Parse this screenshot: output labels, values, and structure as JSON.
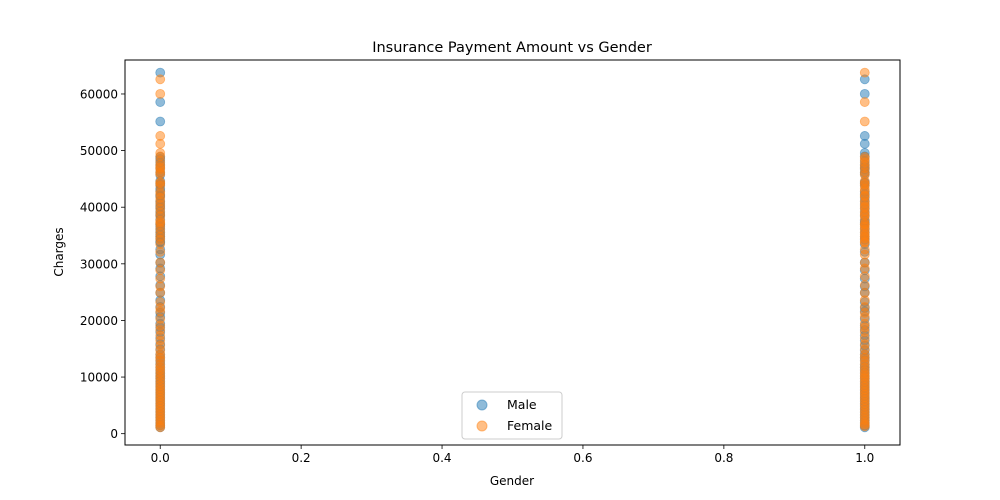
{
  "chart_data": {
    "type": "scatter",
    "title": "Insurance Payment Amount vs Gender",
    "xlabel": "Gender",
    "ylabel": "Charges",
    "xlim": [
      -0.05,
      1.05
    ],
    "ylim": [
      -2000,
      66000
    ],
    "xticks": [
      0.0,
      0.2,
      0.4,
      0.6,
      0.8,
      1.0
    ],
    "xtick_labels": [
      "0.0",
      "0.2",
      "0.4",
      "0.6",
      "0.8",
      "1.0"
    ],
    "yticks": [
      0,
      10000,
      20000,
      30000,
      40000,
      50000,
      60000
    ],
    "ytick_labels": [
      "0",
      "10000",
      "20000",
      "30000",
      "40000",
      "50000",
      "60000"
    ],
    "grid": false,
    "legend_position": "bottom-center",
    "series": [
      {
        "name": "Male",
        "color": "#1f77b4",
        "points": [
          [
            0,
            63770
          ],
          [
            0,
            58571
          ],
          [
            0,
            55135
          ],
          [
            0,
            48885
          ],
          [
            0,
            48517
          ],
          [
            0,
            47928
          ],
          [
            0,
            47403
          ],
          [
            0,
            46889
          ],
          [
            0,
            46200
          ],
          [
            0,
            45702
          ],
          [
            0,
            44641
          ],
          [
            0,
            44202
          ],
          [
            0,
            43943
          ],
          [
            0,
            43254
          ],
          [
            0,
            42856
          ],
          [
            0,
            42112
          ],
          [
            0,
            41919
          ],
          [
            0,
            41097
          ],
          [
            0,
            40720
          ],
          [
            0,
            40182
          ],
          [
            0,
            39871
          ],
          [
            0,
            39241
          ],
          [
            0,
            38746
          ],
          [
            0,
            38511
          ],
          [
            0,
            37829
          ],
          [
            0,
            37133
          ],
          [
            0,
            36950
          ],
          [
            0,
            36580
          ],
          [
            0,
            36085
          ],
          [
            0,
            35585
          ],
          [
            0,
            35160
          ],
          [
            0,
            34839
          ],
          [
            0,
            34472
          ],
          [
            0,
            33900
          ],
          [
            0,
            33750
          ],
          [
            0,
            32548
          ],
          [
            0,
            31620
          ],
          [
            0,
            30184
          ],
          [
            0,
            29186
          ],
          [
            0,
            27808
          ],
          [
            0,
            26236
          ],
          [
            0,
            24873
          ],
          [
            0,
            23568
          ],
          [
            0,
            22395
          ],
          [
            0,
            21348
          ],
          [
            0,
            20630
          ],
          [
            0,
            19444
          ],
          [
            0,
            18767
          ],
          [
            0,
            17929
          ],
          [
            0,
            16884
          ],
          [
            0,
            15820
          ],
          [
            0,
            14901
          ],
          [
            0,
            14001
          ],
          [
            0,
            13415
          ],
          [
            0,
            12829
          ],
          [
            0,
            12268
          ],
          [
            0,
            11658
          ],
          [
            0,
            11090
          ],
          [
            0,
            10600
          ],
          [
            0,
            10197
          ],
          [
            0,
            9800
          ],
          [
            0,
            9301
          ],
          [
            0,
            8800
          ],
          [
            0,
            8302
          ],
          [
            0,
            7800
          ],
          [
            0,
            7345
          ],
          [
            0,
            6900
          ],
          [
            0,
            6410
          ],
          [
            0,
            5920
          ],
          [
            0,
            5400
          ],
          [
            0,
            4950
          ],
          [
            0,
            4400
          ],
          [
            0,
            3900
          ],
          [
            0,
            3400
          ],
          [
            0,
            2900
          ],
          [
            0,
            2400
          ],
          [
            0,
            1900
          ],
          [
            0,
            1500
          ],
          [
            0,
            1131
          ],
          [
            1,
            62593
          ],
          [
            1,
            60021
          ],
          [
            1,
            52591
          ],
          [
            1,
            51195
          ],
          [
            1,
            49577
          ],
          [
            1,
            48970
          ],
          [
            1,
            48173
          ],
          [
            1,
            47496
          ],
          [
            1,
            47055
          ],
          [
            1,
            46718
          ],
          [
            1,
            46130
          ],
          [
            1,
            45863
          ],
          [
            1,
            44423
          ],
          [
            1,
            44260
          ],
          [
            1,
            43813
          ],
          [
            1,
            42760
          ],
          [
            1,
            42303
          ],
          [
            1,
            41661
          ],
          [
            1,
            41034
          ],
          [
            1,
            40419
          ],
          [
            1,
            39725
          ],
          [
            1,
            39047
          ],
          [
            1,
            38415
          ],
          [
            1,
            37607
          ],
          [
            1,
            37270
          ],
          [
            1,
            36910
          ],
          [
            1,
            36197
          ],
          [
            1,
            35491
          ],
          [
            1,
            34806
          ],
          [
            1,
            34254
          ],
          [
            1,
            33475
          ],
          [
            1,
            32108
          ],
          [
            1,
            30260
          ],
          [
            1,
            28868
          ],
          [
            1,
            27375
          ],
          [
            1,
            26018
          ],
          [
            1,
            24915
          ],
          [
            1,
            23244
          ],
          [
            1,
            22218
          ],
          [
            1,
            21595
          ],
          [
            1,
            20277
          ],
          [
            1,
            19107
          ],
          [
            1,
            18310
          ],
          [
            1,
            17352
          ],
          [
            1,
            16450
          ],
          [
            1,
            15555
          ],
          [
            1,
            14711
          ],
          [
            1,
            13981
          ],
          [
            1,
            13415
          ],
          [
            1,
            12950
          ],
          [
            1,
            12233
          ],
          [
            1,
            11743
          ],
          [
            1,
            11264
          ],
          [
            1,
            10736
          ],
          [
            1,
            10197
          ],
          [
            1,
            9700
          ],
          [
            1,
            9140
          ],
          [
            1,
            8600
          ],
          [
            1,
            8100
          ],
          [
            1,
            7640
          ],
          [
            1,
            7150
          ],
          [
            1,
            6660
          ],
          [
            1,
            6180
          ],
          [
            1,
            5700
          ],
          [
            1,
            5210
          ],
          [
            1,
            4730
          ],
          [
            1,
            4250
          ],
          [
            1,
            3760
          ],
          [
            1,
            3280
          ],
          [
            1,
            2800
          ],
          [
            1,
            2330
          ],
          [
            1,
            1880
          ],
          [
            1,
            1420
          ],
          [
            1,
            1121
          ]
        ]
      },
      {
        "name": "Female",
        "color": "#ff7f0e",
        "points": [
          [
            0,
            62593
          ],
          [
            0,
            60021
          ],
          [
            0,
            52591
          ],
          [
            0,
            51195
          ],
          [
            0,
            49577
          ],
          [
            0,
            48970
          ],
          [
            0,
            48173
          ],
          [
            0,
            47496
          ],
          [
            0,
            47055
          ],
          [
            0,
            46718
          ],
          [
            0,
            46130
          ],
          [
            0,
            45863
          ],
          [
            0,
            44423
          ],
          [
            0,
            44260
          ],
          [
            0,
            43813
          ],
          [
            0,
            42760
          ],
          [
            0,
            42303
          ],
          [
            0,
            41661
          ],
          [
            0,
            41034
          ],
          [
            0,
            40419
          ],
          [
            0,
            39725
          ],
          [
            0,
            39047
          ],
          [
            0,
            38415
          ],
          [
            0,
            37607
          ],
          [
            0,
            37270
          ],
          [
            0,
            36910
          ],
          [
            0,
            36197
          ],
          [
            0,
            35491
          ],
          [
            0,
            34806
          ],
          [
            0,
            34254
          ],
          [
            0,
            33475
          ],
          [
            0,
            32108
          ],
          [
            0,
            30260
          ],
          [
            0,
            28868
          ],
          [
            0,
            27375
          ],
          [
            0,
            26018
          ],
          [
            0,
            24915
          ],
          [
            0,
            23244
          ],
          [
            0,
            22218
          ],
          [
            0,
            21595
          ],
          [
            0,
            20277
          ],
          [
            0,
            19107
          ],
          [
            0,
            18310
          ],
          [
            0,
            17352
          ],
          [
            0,
            16450
          ],
          [
            0,
            15555
          ],
          [
            0,
            14711
          ],
          [
            0,
            13981
          ],
          [
            0,
            13415
          ],
          [
            0,
            12950
          ],
          [
            0,
            12233
          ],
          [
            0,
            11743
          ],
          [
            0,
            11264
          ],
          [
            0,
            10736
          ],
          [
            0,
            10197
          ],
          [
            0,
            9700
          ],
          [
            0,
            9140
          ],
          [
            0,
            8600
          ],
          [
            0,
            8100
          ],
          [
            0,
            7640
          ],
          [
            0,
            7150
          ],
          [
            0,
            6660
          ],
          [
            0,
            6180
          ],
          [
            0,
            5700
          ],
          [
            0,
            5210
          ],
          [
            0,
            4730
          ],
          [
            0,
            4250
          ],
          [
            0,
            3760
          ],
          [
            0,
            3280
          ],
          [
            0,
            2800
          ],
          [
            0,
            2330
          ],
          [
            0,
            1880
          ],
          [
            0,
            1420
          ],
          [
            0,
            1121
          ],
          [
            1,
            63770
          ],
          [
            1,
            58571
          ],
          [
            1,
            55135
          ],
          [
            1,
            48885
          ],
          [
            1,
            48517
          ],
          [
            1,
            47928
          ],
          [
            1,
            47403
          ],
          [
            1,
            46889
          ],
          [
            1,
            46200
          ],
          [
            1,
            45702
          ],
          [
            1,
            44641
          ],
          [
            1,
            44202
          ],
          [
            1,
            43943
          ],
          [
            1,
            43254
          ],
          [
            1,
            42856
          ],
          [
            1,
            42112
          ],
          [
            1,
            41919
          ],
          [
            1,
            41097
          ],
          [
            1,
            40720
          ],
          [
            1,
            40182
          ],
          [
            1,
            39871
          ],
          [
            1,
            39241
          ],
          [
            1,
            38746
          ],
          [
            1,
            38511
          ],
          [
            1,
            37829
          ],
          [
            1,
            37133
          ],
          [
            1,
            36950
          ],
          [
            1,
            36580
          ],
          [
            1,
            36085
          ],
          [
            1,
            35585
          ],
          [
            1,
            35160
          ],
          [
            1,
            34839
          ],
          [
            1,
            34472
          ],
          [
            1,
            33900
          ],
          [
            1,
            33750
          ],
          [
            1,
            32548
          ],
          [
            1,
            31620
          ],
          [
            1,
            30184
          ],
          [
            1,
            29186
          ],
          [
            1,
            27808
          ],
          [
            1,
            26236
          ],
          [
            1,
            24873
          ],
          [
            1,
            23568
          ],
          [
            1,
            22395
          ],
          [
            1,
            21348
          ],
          [
            1,
            20630
          ],
          [
            1,
            19444
          ],
          [
            1,
            18767
          ],
          [
            1,
            17929
          ],
          [
            1,
            16884
          ],
          [
            1,
            15820
          ],
          [
            1,
            14901
          ],
          [
            1,
            14001
          ],
          [
            1,
            13415
          ],
          [
            1,
            12829
          ],
          [
            1,
            12268
          ],
          [
            1,
            11658
          ],
          [
            1,
            11090
          ],
          [
            1,
            10600
          ],
          [
            1,
            10197
          ],
          [
            1,
            9800
          ],
          [
            1,
            9301
          ],
          [
            1,
            8800
          ],
          [
            1,
            8302
          ],
          [
            1,
            7800
          ],
          [
            1,
            7345
          ],
          [
            1,
            6900
          ],
          [
            1,
            6410
          ],
          [
            1,
            5920
          ],
          [
            1,
            5400
          ],
          [
            1,
            4950
          ],
          [
            1,
            4400
          ],
          [
            1,
            3900
          ],
          [
            1,
            3400
          ],
          [
            1,
            2900
          ],
          [
            1,
            2400
          ],
          [
            1,
            1900
          ],
          [
            1,
            1600
          ],
          [
            1,
            1300
          ]
        ]
      }
    ]
  }
}
